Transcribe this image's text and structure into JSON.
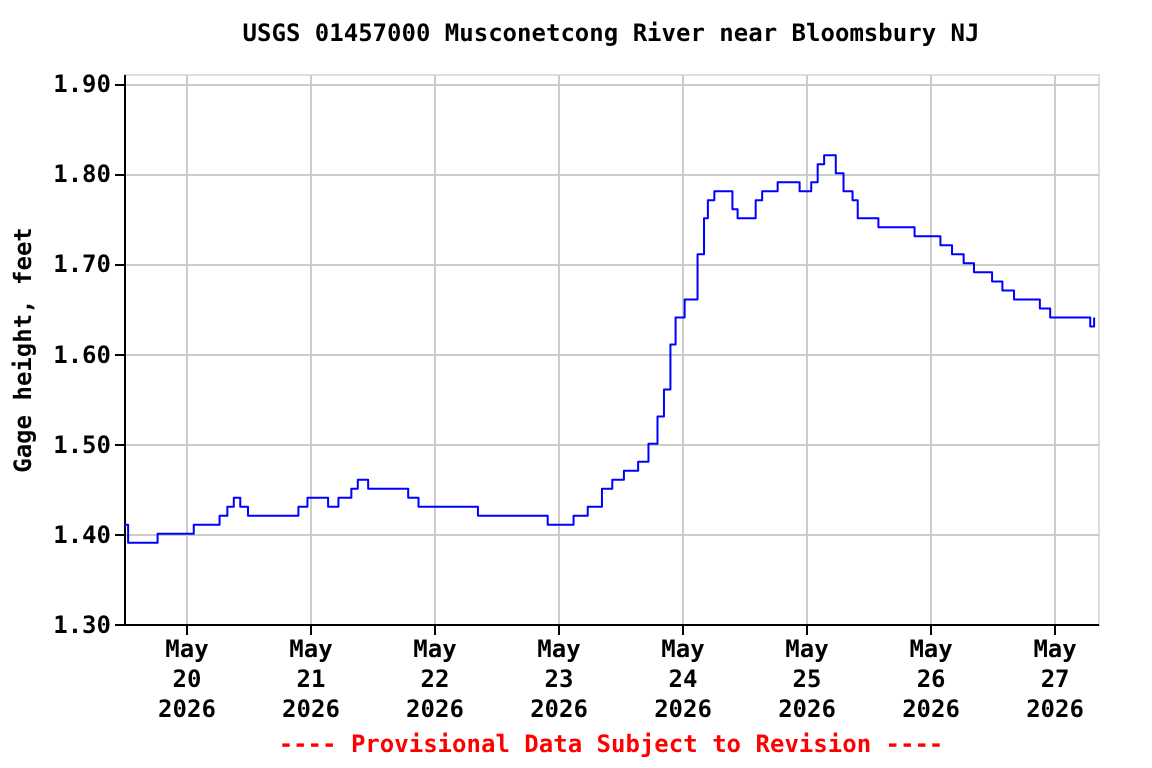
{
  "chart_data": {
    "type": "step",
    "title": "USGS 01457000 Musconetcong River near Bloomsbury NJ",
    "ylabel": "Gage height, feet",
    "annotations": [
      "---- Provisional Data Subject to Revision ----"
    ],
    "x": [
      "2026-05-19T12:00",
      "2026-05-19T12:48",
      "2026-05-19T16:30",
      "2026-05-19T18:30",
      "2026-05-19T23:30",
      "2026-05-20T01:30",
      "2026-05-20T05:30",
      "2026-05-20T06:30",
      "2026-05-20T08:00",
      "2026-05-20T09:15",
      "2026-05-20T10:30",
      "2026-05-20T12:00",
      "2026-05-20T19:45",
      "2026-05-20T21:45",
      "2026-05-20T23:30",
      "2026-05-21T03:30",
      "2026-05-21T05:30",
      "2026-05-21T08:00",
      "2026-05-21T09:15",
      "2026-05-21T11:15",
      "2026-05-21T17:00",
      "2026-05-21T19:00",
      "2026-05-21T21:00",
      "2026-05-22T06:30",
      "2026-05-22T08:30",
      "2026-05-22T16:15",
      "2026-05-22T22:00",
      "2026-05-23T03:00",
      "2026-05-23T05:45",
      "2026-05-23T08:30",
      "2026-05-23T10:30",
      "2026-05-23T12:45",
      "2026-05-23T15:30",
      "2026-05-23T17:30",
      "2026-05-23T19:15",
      "2026-05-23T20:30",
      "2026-05-23T21:45",
      "2026-05-23T22:45",
      "2026-05-24T00:30",
      "2026-05-24T02:15",
      "2026-05-24T03:00",
      "2026-05-24T04:15",
      "2026-05-24T05:00",
      "2026-05-24T06:15",
      "2026-05-24T08:30",
      "2026-05-24T09:45",
      "2026-05-24T10:45",
      "2026-05-24T12:45",
      "2026-05-24T14:15",
      "2026-05-24T15:30",
      "2026-05-24T17:45",
      "2026-05-24T18:30",
      "2026-05-24T21:15",
      "2026-05-24T22:45",
      "2026-05-25T01:00",
      "2026-05-25T02:15",
      "2026-05-25T03:30",
      "2026-05-25T04:30",
      "2026-05-25T05:45",
      "2026-05-25T07:15",
      "2026-05-25T09:00",
      "2026-05-25T10:00",
      "2026-05-25T13:00",
      "2026-05-25T14:00",
      "2026-05-25T19:45",
      "2026-05-25T21:00",
      "2026-05-26T02:00",
      "2026-05-26T04:15",
      "2026-05-26T06:30",
      "2026-05-26T08:30",
      "2026-05-26T12:00",
      "2026-05-26T14:00",
      "2026-05-26T16:15",
      "2026-05-26T19:00",
      "2026-05-26T21:15",
      "2026-05-26T23:15",
      "2026-05-27T06:15",
      "2026-05-27T07:00",
      "2026-05-27T07:45"
    ],
    "series": [
      {
        "color": "#0000ff",
        "values": [
          1.41,
          1.39,
          1.39,
          1.4,
          1.4,
          1.41,
          1.41,
          1.42,
          1.43,
          1.44,
          1.43,
          1.42,
          1.42,
          1.43,
          1.44,
          1.43,
          1.44,
          1.45,
          1.46,
          1.45,
          1.45,
          1.44,
          1.43,
          1.43,
          1.42,
          1.42,
          1.41,
          1.42,
          1.43,
          1.45,
          1.46,
          1.47,
          1.48,
          1.5,
          1.53,
          1.56,
          1.61,
          1.64,
          1.66,
          1.66,
          1.71,
          1.75,
          1.77,
          1.78,
          1.78,
          1.76,
          1.75,
          1.75,
          1.77,
          1.78,
          1.78,
          1.79,
          1.79,
          1.78,
          1.79,
          1.81,
          1.82,
          1.82,
          1.8,
          1.78,
          1.77,
          1.75,
          1.75,
          1.74,
          1.74,
          1.73,
          1.72,
          1.71,
          1.7,
          1.69,
          1.68,
          1.67,
          1.66,
          1.66,
          1.65,
          1.64,
          1.64,
          1.63,
          1.64
        ]
      }
    ],
    "xlim": [
      "2026-05-19T12:00",
      "2026-05-27T08:30"
    ],
    "xticks": [
      {
        "value": "2026-05-20T00:00",
        "label": "May\n20\n2026"
      },
      {
        "value": "2026-05-21T00:00",
        "label": "May\n21\n2026"
      },
      {
        "value": "2026-05-22T00:00",
        "label": "May\n22\n2026"
      },
      {
        "value": "2026-05-23T00:00",
        "label": "May\n23\n2026"
      },
      {
        "value": "2026-05-24T00:00",
        "label": "May\n24\n2026"
      },
      {
        "value": "2026-05-25T00:00",
        "label": "May\n25\n2026"
      },
      {
        "value": "2026-05-26T00:00",
        "label": "May\n26\n2026"
      },
      {
        "value": "2026-05-27T00:00",
        "label": "May\n27\n2026"
      }
    ],
    "ylim": [
      1.3,
      1.91
    ],
    "yticks": [
      {
        "value": 1.3,
        "label": "1.30"
      },
      {
        "value": 1.4,
        "label": "1.40"
      },
      {
        "value": 1.5,
        "label": "1.50"
      },
      {
        "value": 1.6,
        "label": "1.60"
      },
      {
        "value": 1.7,
        "label": "1.70"
      },
      {
        "value": 1.8,
        "label": "1.80"
      },
      {
        "value": 1.9,
        "label": "1.90"
      }
    ],
    "grid": true,
    "legend": false,
    "line_style": "solid"
  }
}
